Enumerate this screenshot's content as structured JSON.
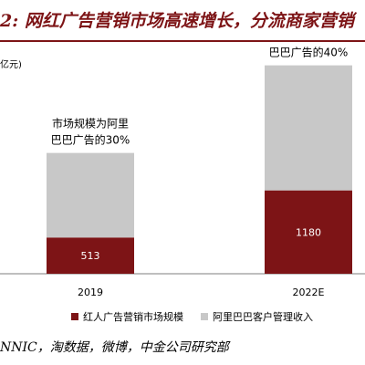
{
  "header": {
    "title": "2: 网红广告营销市场高速增长，分流商家营销",
    "unit": "亿元)"
  },
  "source": "NNIC，淘数据，微博，中金公司研究部",
  "colors": {
    "brand": "#7d1416",
    "gray": "#c8c8c8",
    "axis": "#7f7f7f"
  },
  "chart_data": {
    "type": "bar",
    "stacked": true,
    "categories": [
      "2019",
      "2022E"
    ],
    "series": [
      {
        "name": "红人广告营销市场规模",
        "values": [
          513,
          1180
        ],
        "color": "#7d1416",
        "labels": [
          "513",
          "1180"
        ]
      },
      {
        "name": "阿里巴巴客户管理收入",
        "values": [
          1197,
          1770
        ],
        "color": "#c8c8c8"
      }
    ],
    "annotations": [
      {
        "category": "2019",
        "lines": [
          "市场规模为阿里",
          "巴巴广告的30%"
        ]
      },
      {
        "category": "2022E",
        "lines": [
          "市场规模为阿里",
          "巴巴广告的40%"
        ]
      }
    ],
    "ylim": [
      0,
      3100
    ],
    "grid": false,
    "legend": "bottom"
  }
}
